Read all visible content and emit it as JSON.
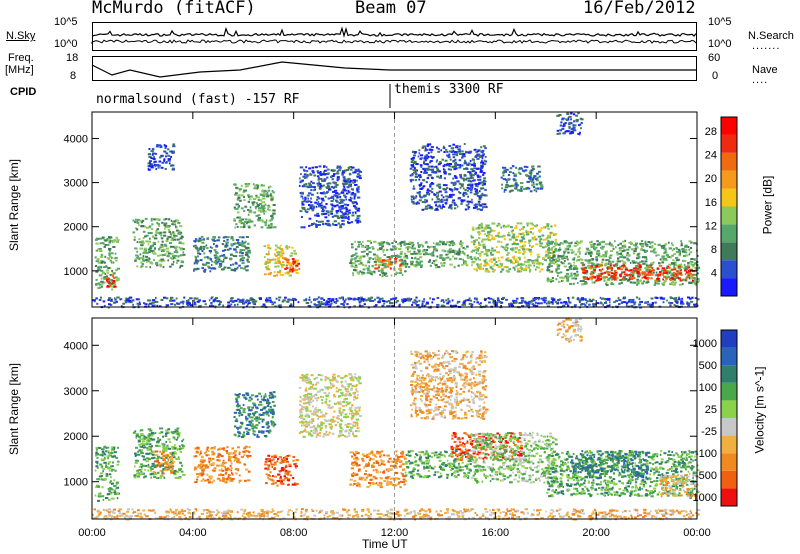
{
  "header": {
    "station": "McMurdo (fitACF)",
    "beam": "Beam 07",
    "date": "16/Feb/2012"
  },
  "panels": {
    "sky": {
      "left_label": "N.Sky",
      "right_label": "N.Search",
      "left_ticks": [
        "10^5",
        "10^0"
      ],
      "right_ticks": [
        "10^5",
        "10^0"
      ]
    },
    "freq": {
      "left_label_1": "Freq.",
      "left_label_2": "[MHz]",
      "right_label": "Nave",
      "left_ticks": [
        "18",
        "8"
      ],
      "right_ticks": [
        "60",
        "0"
      ]
    },
    "cpid": {
      "label": "CPID",
      "mode_1": "normalsound (fast) -157 RF",
      "mode_2": "themis 3300 RF"
    }
  },
  "colors": {
    "power": [
      "#1a1aff",
      "#2a4fcf",
      "#3f7a5a",
      "#55a86a",
      "#8cc85a",
      "#f5c518",
      "#f59a1a",
      "#f06a10",
      "#ee2a10",
      "#ff0000"
    ],
    "velocity": [
      "#1f3fbf",
      "#2a64b8",
      "#2f7f6a",
      "#4aa84a",
      "#8ad24a",
      "#c8c8c8",
      "#f0b040",
      "#f08a20",
      "#f06010",
      "#ee1010"
    ]
  },
  "chart_data": [
    {
      "type": "heatmap",
      "title": "",
      "xlabel": "",
      "ylabel": "Slant Range [km]",
      "xlim_hours": [
        0,
        24
      ],
      "ylim": [
        180,
        4600
      ],
      "x_ticks": [
        "00:00",
        "04:00",
        "08:00",
        "12:00",
        "16:00",
        "20:00",
        "00:00"
      ],
      "y_ticks": [
        1000,
        2000,
        3000,
        4000
      ],
      "colorbar_label": "Power [dB]",
      "colorbar_ticks": [
        4,
        8,
        12,
        16,
        20,
        24,
        28
      ],
      "blobs": [
        {
          "t0": 0.1,
          "t1": 1.0,
          "r0": 600,
          "r1": 1800,
          "level": 3
        },
        {
          "t0": 0.5,
          "t1": 0.9,
          "r0": 650,
          "r1": 950,
          "level": 8
        },
        {
          "t0": 1.6,
          "t1": 3.6,
          "r0": 1100,
          "r1": 2200,
          "level": 3
        },
        {
          "t0": 2.2,
          "t1": 3.2,
          "r0": 3300,
          "r1": 3900,
          "level": 1
        },
        {
          "t0": 4.0,
          "t1": 6.2,
          "r0": 1000,
          "r1": 1800,
          "level": 2
        },
        {
          "t0": 5.6,
          "t1": 7.2,
          "r0": 2000,
          "r1": 3000,
          "level": 3
        },
        {
          "t0": 6.8,
          "t1": 8.1,
          "r0": 900,
          "r1": 1600,
          "level": 5
        },
        {
          "t0": 7.6,
          "t1": 8.2,
          "r0": 1000,
          "r1": 1300,
          "level": 8
        },
        {
          "t0": 8.2,
          "t1": 10.6,
          "r0": 2000,
          "r1": 3400,
          "level": 1
        },
        {
          "t0": 10.2,
          "t1": 12.4,
          "r0": 900,
          "r1": 1700,
          "level": 3
        },
        {
          "t0": 11.2,
          "t1": 12.2,
          "r0": 1050,
          "r1": 1300,
          "level": 7
        },
        {
          "t0": 12.4,
          "t1": 15.0,
          "r0": 1100,
          "r1": 1700,
          "level": 3
        },
        {
          "t0": 12.6,
          "t1": 15.6,
          "r0": 2400,
          "r1": 3900,
          "level": 1
        },
        {
          "t0": 15.0,
          "t1": 18.4,
          "r0": 1000,
          "r1": 2100,
          "level": 4
        },
        {
          "t0": 16.2,
          "t1": 17.8,
          "r0": 2800,
          "r1": 3400,
          "level": 2
        },
        {
          "t0": 18.0,
          "t1": 24.0,
          "r0": 700,
          "r1": 1700,
          "level": 3
        },
        {
          "t0": 19.4,
          "t1": 23.8,
          "r0": 800,
          "r1": 1150,
          "level": 8
        },
        {
          "t0": 18.4,
          "t1": 19.4,
          "r0": 4100,
          "r1": 4600,
          "level": 1
        },
        {
          "t0": 0.0,
          "t1": 24.0,
          "r0": 190,
          "r1": 420,
          "level": 1
        }
      ]
    },
    {
      "type": "heatmap",
      "title": "",
      "xlabel": "Time UT",
      "ylabel": "Slant Range [km]",
      "xlim_hours": [
        0,
        24
      ],
      "ylim": [
        180,
        4600
      ],
      "x_ticks": [
        "00:00",
        "04:00",
        "08:00",
        "12:00",
        "16:00",
        "20:00",
        "00:00"
      ],
      "y_ticks": [
        1000,
        2000,
        3000,
        4000
      ],
      "colorbar_label": "Velocity [m s^-1]",
      "colorbar_ticks": [
        "1000",
        "500",
        "100",
        "25",
        "-25",
        "-100",
        "-500",
        "-1000"
      ],
      "blobs": [
        {
          "t0": 0.1,
          "t1": 1.0,
          "r0": 600,
          "r1": 1800,
          "level": 3
        },
        {
          "t0": 1.6,
          "t1": 3.6,
          "r0": 1100,
          "r1": 2200,
          "level": 3
        },
        {
          "t0": 2.4,
          "t1": 3.2,
          "r0": 1200,
          "r1": 1700,
          "level": 7
        },
        {
          "t0": 4.0,
          "t1": 6.2,
          "r0": 1000,
          "r1": 1800,
          "level": 7
        },
        {
          "t0": 5.6,
          "t1": 7.2,
          "r0": 2000,
          "r1": 3000,
          "level": 2
        },
        {
          "t0": 6.8,
          "t1": 8.1,
          "r0": 900,
          "r1": 1600,
          "level": 8
        },
        {
          "t0": 8.2,
          "t1": 10.6,
          "r0": 2000,
          "r1": 3400,
          "level": 5
        },
        {
          "t0": 10.2,
          "t1": 12.4,
          "r0": 900,
          "r1": 1700,
          "level": 7
        },
        {
          "t0": 12.4,
          "t1": 15.0,
          "r0": 1100,
          "r1": 1700,
          "level": 3
        },
        {
          "t0": 12.6,
          "t1": 15.6,
          "r0": 2400,
          "r1": 3900,
          "level": 6
        },
        {
          "t0": 14.2,
          "t1": 17.0,
          "r0": 1500,
          "r1": 2100,
          "level": 8
        },
        {
          "t0": 15.0,
          "t1": 18.4,
          "r0": 1000,
          "r1": 2100,
          "level": 4
        },
        {
          "t0": 18.0,
          "t1": 24.0,
          "r0": 700,
          "r1": 1700,
          "level": 3
        },
        {
          "t0": 19.0,
          "t1": 22.0,
          "r0": 1100,
          "r1": 1700,
          "level": 2
        },
        {
          "t0": 22.5,
          "t1": 24.0,
          "r0": 700,
          "r1": 1200,
          "level": 6
        },
        {
          "t0": 18.4,
          "t1": 19.4,
          "r0": 4100,
          "r1": 4600,
          "level": 6
        },
        {
          "t0": 0.0,
          "t1": 24.0,
          "r0": 190,
          "r1": 420,
          "level": 6
        }
      ]
    }
  ]
}
